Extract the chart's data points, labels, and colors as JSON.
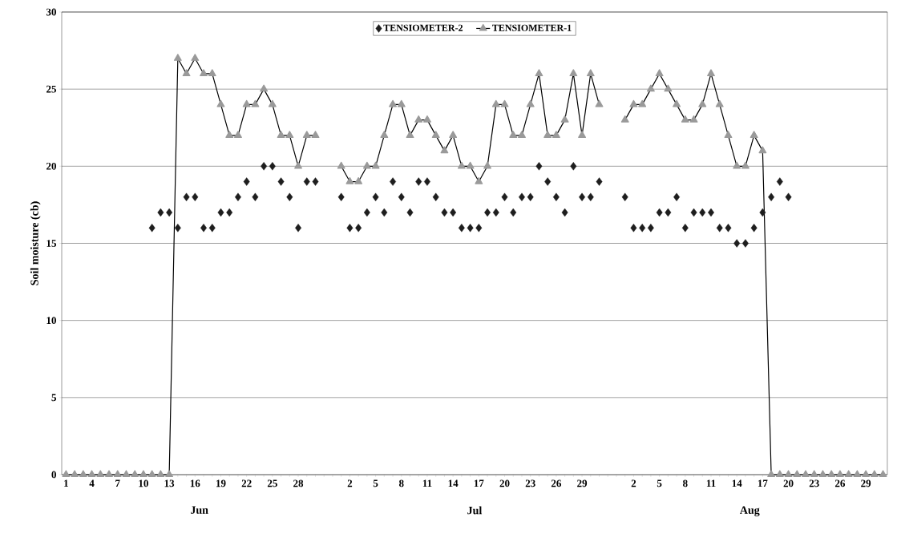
{
  "chart_data": {
    "type": "line",
    "ylabel": "Soil moisture (cb)",
    "categories": [
      "1",
      null,
      null,
      "4",
      null,
      null,
      "7",
      null,
      null,
      "10",
      null,
      null,
      "13",
      null,
      null,
      "16",
      null,
      null,
      "19",
      null,
      null,
      "22",
      null,
      null,
      "25",
      null,
      null,
      "28",
      null,
      null,
      null,
      null,
      null,
      "2",
      null,
      null,
      "5",
      null,
      null,
      "8",
      null,
      null,
      "11",
      null,
      null,
      "14",
      null,
      null,
      "17",
      null,
      null,
      "20",
      null,
      null,
      "23",
      null,
      null,
      "26",
      null,
      null,
      "29",
      null,
      null,
      null,
      null,
      null,
      "2",
      null,
      null,
      "5",
      null,
      null,
      "8",
      null,
      null,
      "11",
      null,
      null,
      "14",
      null,
      null,
      "17",
      null,
      null,
      "20",
      null,
      null,
      "23",
      null,
      null,
      "26",
      null,
      null,
      "29",
      null,
      null
    ],
    "series": [
      {
        "name": "TENSIOMETER-2",
        "type": "scatter",
        "marker": "diamond",
        "color": "#1e1e1e",
        "values": [
          null,
          null,
          null,
          null,
          null,
          null,
          null,
          null,
          null,
          null,
          16,
          17,
          17,
          16,
          18,
          18,
          16,
          16,
          17,
          17,
          18,
          19,
          18,
          20,
          20,
          19,
          18,
          16,
          19,
          19,
          null,
          null,
          18,
          16,
          16,
          17,
          18,
          17,
          19,
          18,
          17,
          19,
          19,
          18,
          17,
          17,
          16,
          16,
          16,
          17,
          17,
          18,
          17,
          18,
          18,
          20,
          19,
          18,
          17,
          20,
          18,
          18,
          19,
          null,
          null,
          18,
          16,
          16,
          16,
          17,
          17,
          18,
          16,
          17,
          17,
          17,
          16,
          16,
          15,
          15,
          16,
          17,
          18,
          19,
          18,
          null,
          null,
          null,
          null,
          null,
          null,
          null,
          null,
          null,
          null,
          null
        ]
      },
      {
        "name": "TENSIOMETER-1",
        "type": "line",
        "marker": "triangle",
        "line_style": "solid",
        "color": "#9a9a9a",
        "values": [
          0,
          0,
          0,
          0,
          0,
          0,
          0,
          0,
          0,
          0,
          0,
          0,
          0,
          27,
          26,
          27,
          26,
          26,
          24,
          22,
          22,
          24,
          24,
          25,
          24,
          22,
          22,
          20,
          22,
          22,
          null,
          null,
          20,
          19,
          19,
          20,
          20,
          22,
          24,
          24,
          22,
          23,
          23,
          22,
          21,
          22,
          20,
          20,
          19,
          20,
          24,
          24,
          22,
          22,
          24,
          26,
          22,
          22,
          23,
          26,
          22,
          26,
          24,
          null,
          null,
          23,
          24,
          24,
          25,
          26,
          25,
          24,
          23,
          23,
          24,
          26,
          24,
          22,
          20,
          20,
          22,
          21,
          0,
          0,
          0,
          0,
          0,
          0,
          0,
          0,
          0,
          0,
          0,
          0,
          0,
          0
        ]
      }
    ],
    "ylim": [
      0,
      30
    ],
    "yticks": [
      0,
      5,
      10,
      15,
      20,
      25,
      30
    ],
    "grid": "y",
    "legend": "top",
    "annotations": [
      "Jun",
      "Jul",
      "Aug"
    ]
  }
}
